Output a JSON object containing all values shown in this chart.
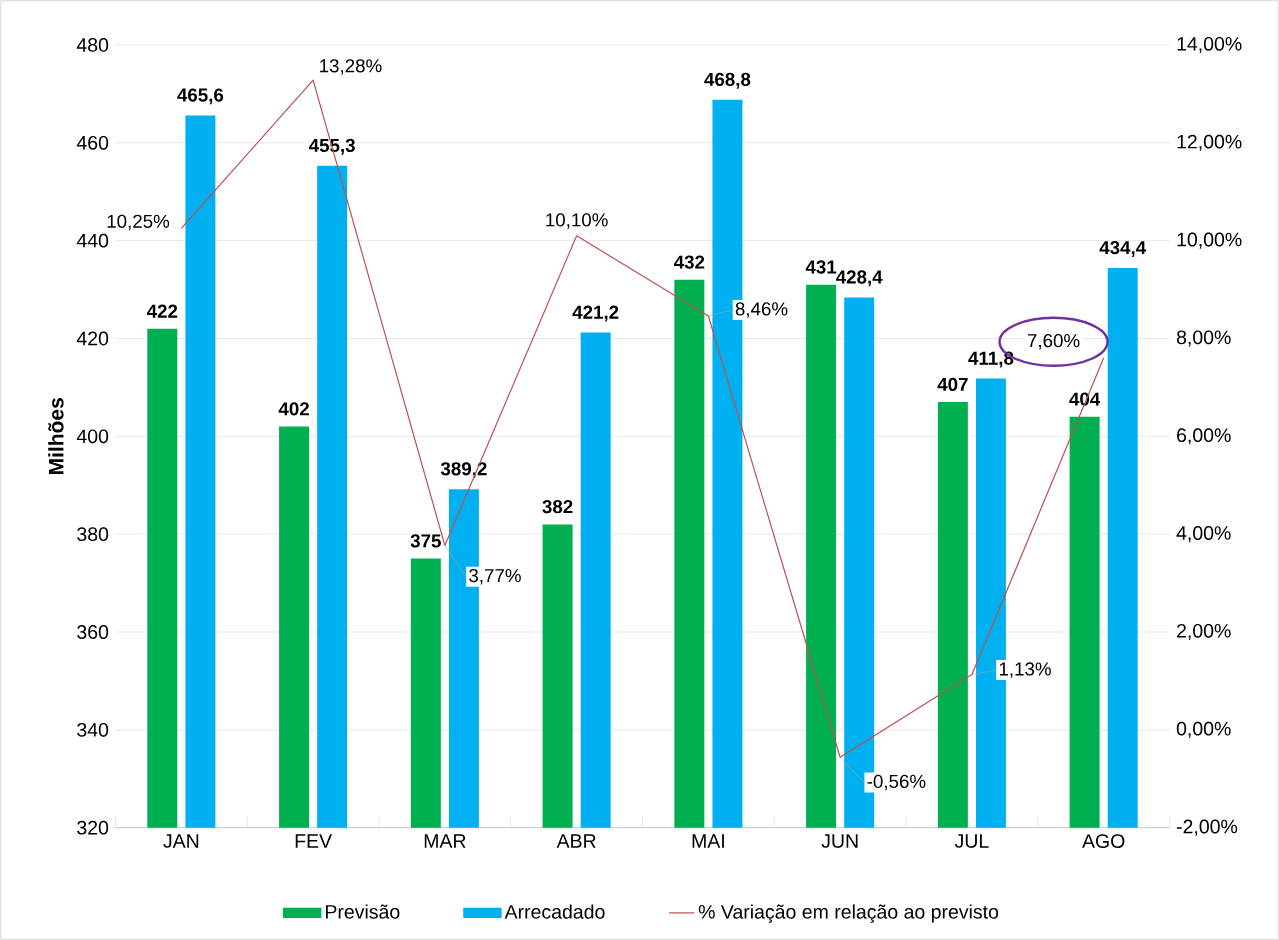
{
  "chart_data": {
    "type": "bar",
    "ylabel": "Milhões",
    "categories": [
      "JAN",
      "FEV",
      "MAR",
      "ABR",
      "MAI",
      "JUN",
      "JUL",
      "AGO"
    ],
    "series": [
      {
        "name": "Previsão",
        "color": "#00b050",
        "values": [
          422,
          402,
          375,
          382,
          432,
          431,
          407,
          404
        ],
        "value_labels": [
          "422",
          "402",
          "375",
          "382",
          "432",
          "431",
          "407",
          "404"
        ]
      },
      {
        "name": "Arrecadado",
        "color": "#00b0f0",
        "values": [
          465.6,
          455.3,
          389.2,
          421.2,
          468.8,
          428.4,
          411.8,
          434.4
        ],
        "value_labels": [
          "465,6",
          "455,3",
          "389,2",
          "421,2",
          "468,8",
          "428,4",
          "411,8",
          "434,4"
        ]
      },
      {
        "name": "% Variação em relação ao previsto",
        "type": "line",
        "axis": "y2",
        "color": "#c0504d",
        "values": [
          10.25,
          13.28,
          3.77,
          10.1,
          8.46,
          -0.56,
          1.13,
          7.6
        ],
        "value_labels": [
          "10,25%",
          "13,28%",
          "3,77%",
          "10,10%",
          "8,46%",
          "-0,56%",
          "1,13%",
          "7,60%"
        ]
      }
    ],
    "ylim": [
      320,
      480
    ],
    "yticks": [
      320,
      340,
      360,
      380,
      400,
      420,
      440,
      460,
      480
    ],
    "y2lim": [
      -2,
      14
    ],
    "y2ticks": [
      {
        "value": -2,
        "label": "-2,00%"
      },
      {
        "value": 0,
        "label": "0,00%"
      },
      {
        "value": 2,
        "label": "2,00%"
      },
      {
        "value": 4,
        "label": "4,00%"
      },
      {
        "value": 6,
        "label": "6,00%"
      },
      {
        "value": 8,
        "label": "8,00%"
      },
      {
        "value": 10,
        "label": "10,00%"
      },
      {
        "value": 12,
        "label": "12,00%"
      },
      {
        "value": 14,
        "label": "14,00%"
      }
    ],
    "grid": "y",
    "legend": "bottom"
  }
}
